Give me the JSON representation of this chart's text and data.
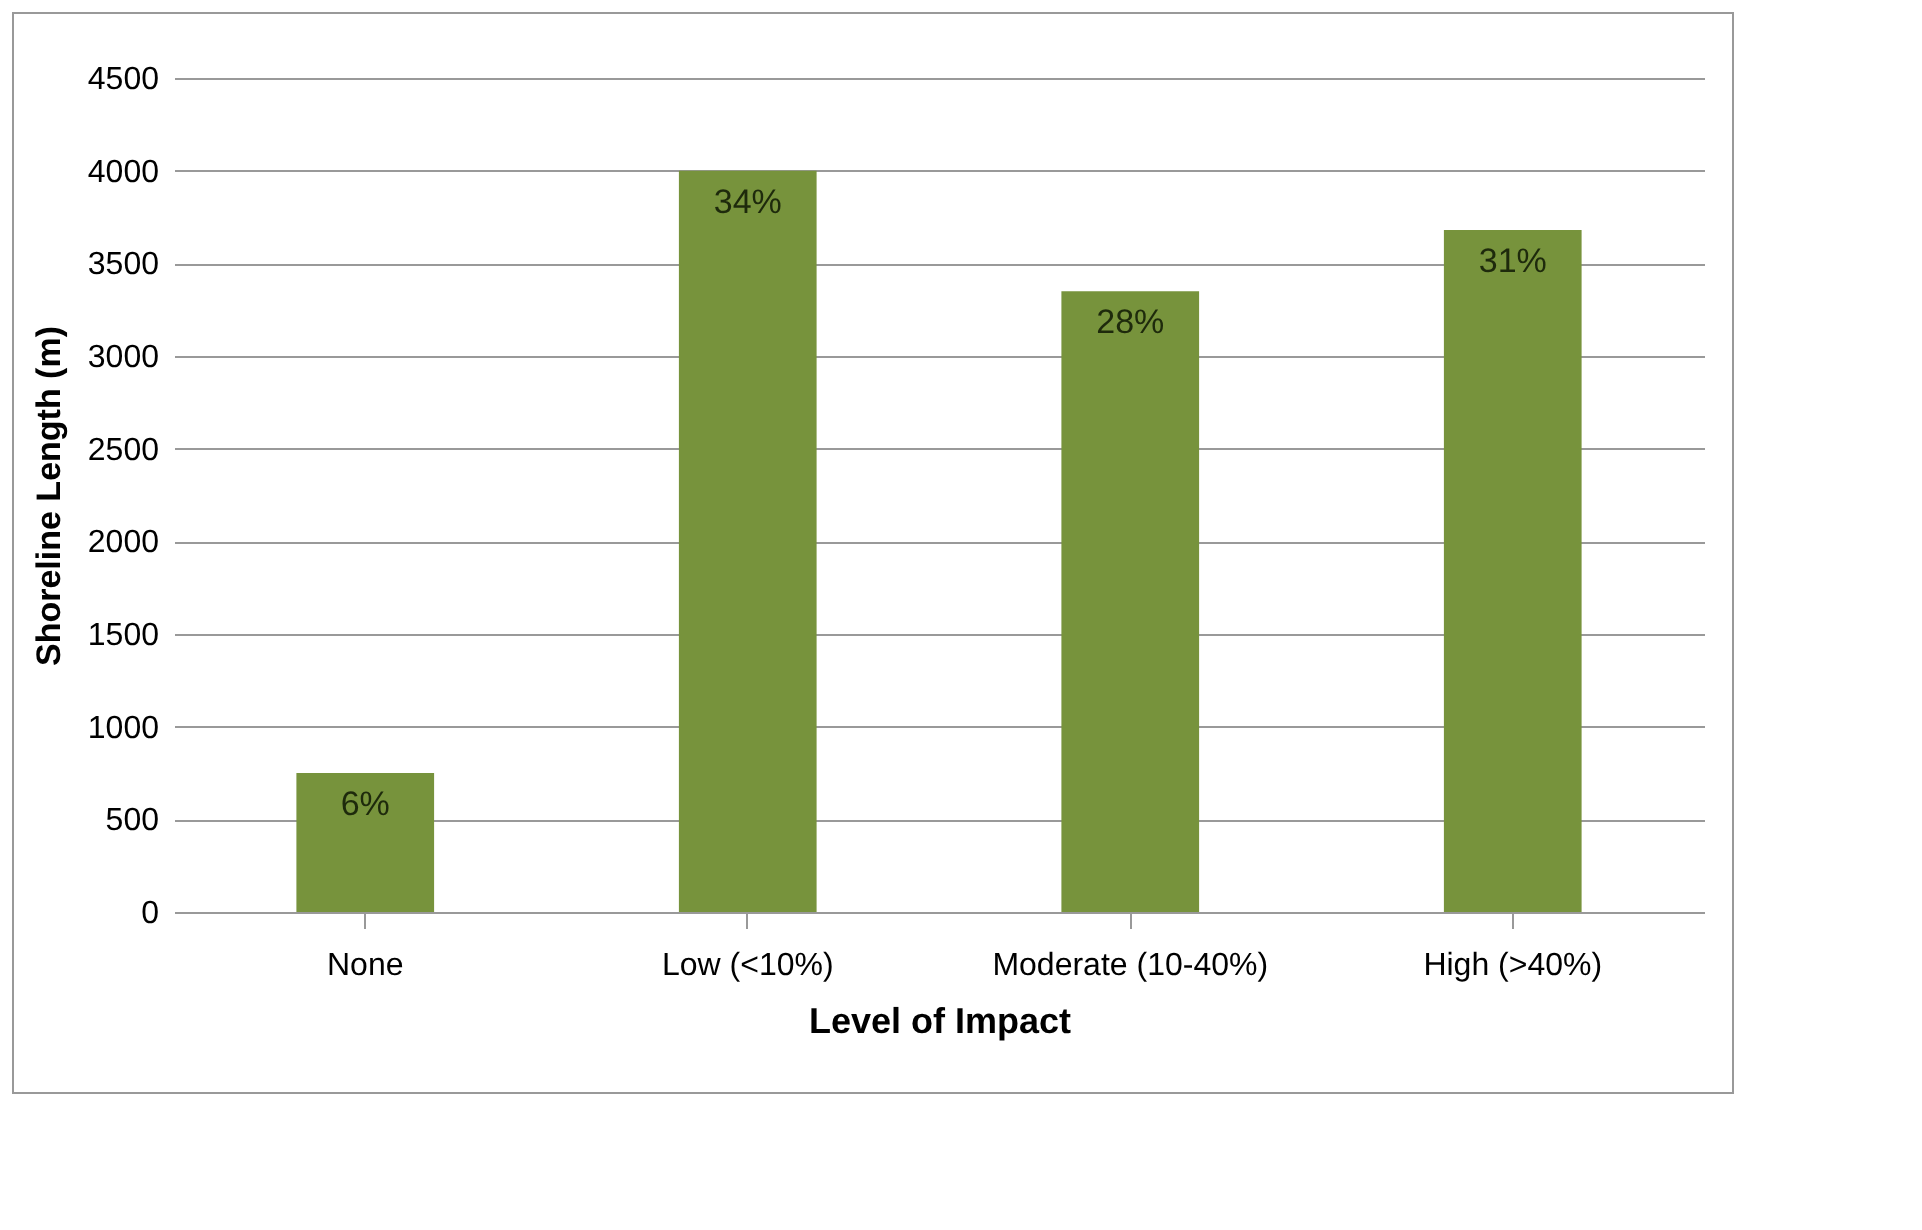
{
  "chart_data": {
    "type": "bar",
    "xlabel": "Level of Impact",
    "ylabel": "Shoreline Length (m)",
    "categories": [
      "None",
      "Low (<10%)",
      "Moderate (10-40%)",
      "High (>40%)"
    ],
    "values": [
      750,
      4000,
      3350,
      3680
    ],
    "annotations": [
      {
        "text": "6%",
        "x": "None",
        "y": 750
      },
      {
        "text": "34%",
        "x": "Low (<10%)",
        "y": 4000
      },
      {
        "text": "28%",
        "x": "Moderate (10-40%)",
        "y": 3350
      },
      {
        "text": "31%",
        "x": "High (>40%)",
        "y": 3680
      }
    ],
    "color": "#77933c",
    "ylim": [
      0,
      4500
    ],
    "yticks": [
      0,
      500,
      1000,
      1500,
      2000,
      2500,
      3000,
      3500,
      4000,
      4500
    ],
    "grid": "y"
  }
}
